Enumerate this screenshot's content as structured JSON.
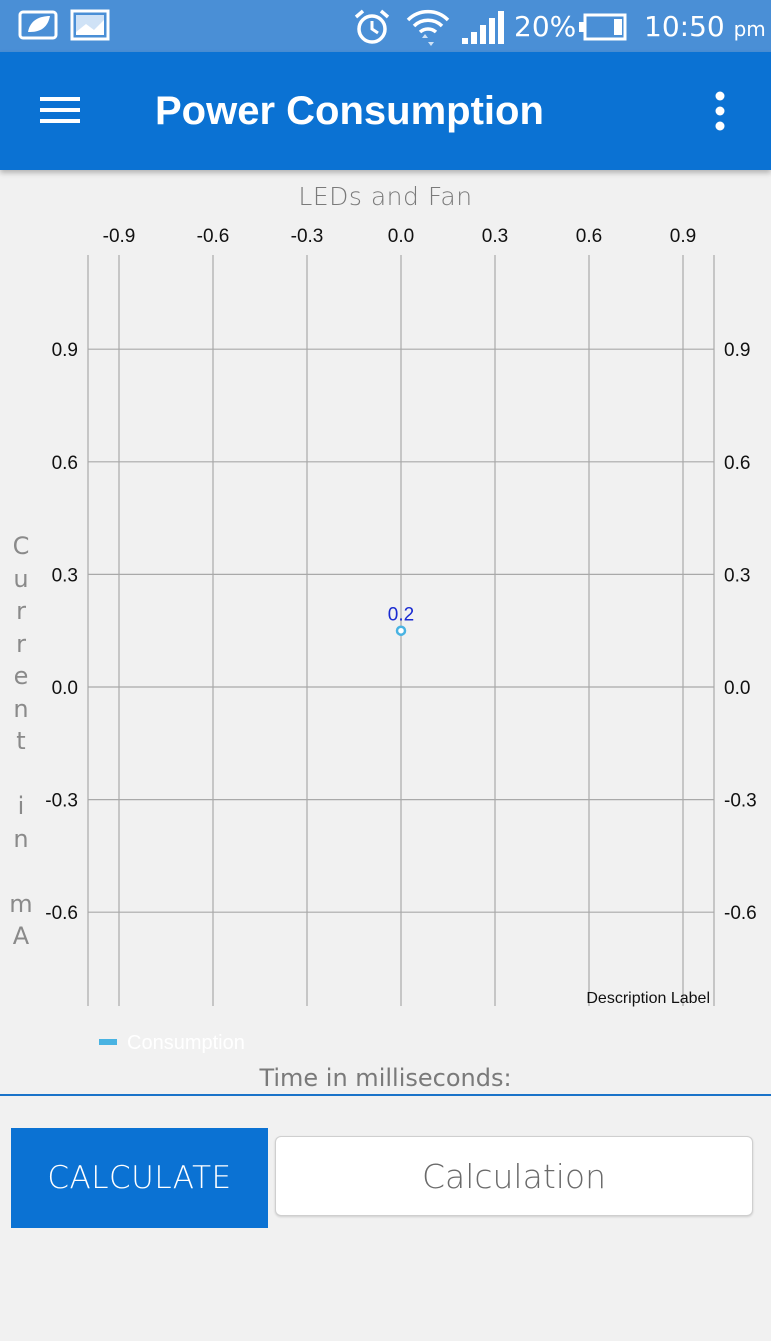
{
  "status_bar": {
    "battery_percent": "20%",
    "time": "10:50",
    "ampm": "pm",
    "icons": [
      "leaf-notification-icon",
      "image-notification-icon",
      "alarm-icon",
      "wifi-icon",
      "signal-icon",
      "battery-icon"
    ]
  },
  "app_bar": {
    "title": "Power Consumption",
    "menu_icon": "hamburger-menu-icon",
    "overflow_icon": "more-vert-icon"
  },
  "chart_data": {
    "type": "scatter",
    "title": "LEDs and Fan",
    "xlabel": "Time in milliseconds:",
    "ylabel": "Current in mA",
    "x_ticks": [
      "-0.9",
      "-0.6",
      "-0.3",
      "0.0",
      "0.3",
      "0.6",
      "0.9"
    ],
    "y_ticks": [
      "0.9",
      "0.6",
      "0.3",
      "0.0",
      "-0.3",
      "-0.6"
    ],
    "xlim": [
      -1.0,
      1.0
    ],
    "ylim": [
      -0.85,
      1.15
    ],
    "grid": true,
    "series": [
      {
        "name": "Consumption",
        "color": "#49b3e2",
        "points": [
          {
            "x": 0.0,
            "y": 0.15,
            "label": "0.2"
          }
        ]
      }
    ],
    "description_label": "Description Label",
    "legend_position": "bottom-left"
  },
  "controls": {
    "calculate_label": "CALCULATE",
    "calculation_placeholder": "Calculation"
  }
}
